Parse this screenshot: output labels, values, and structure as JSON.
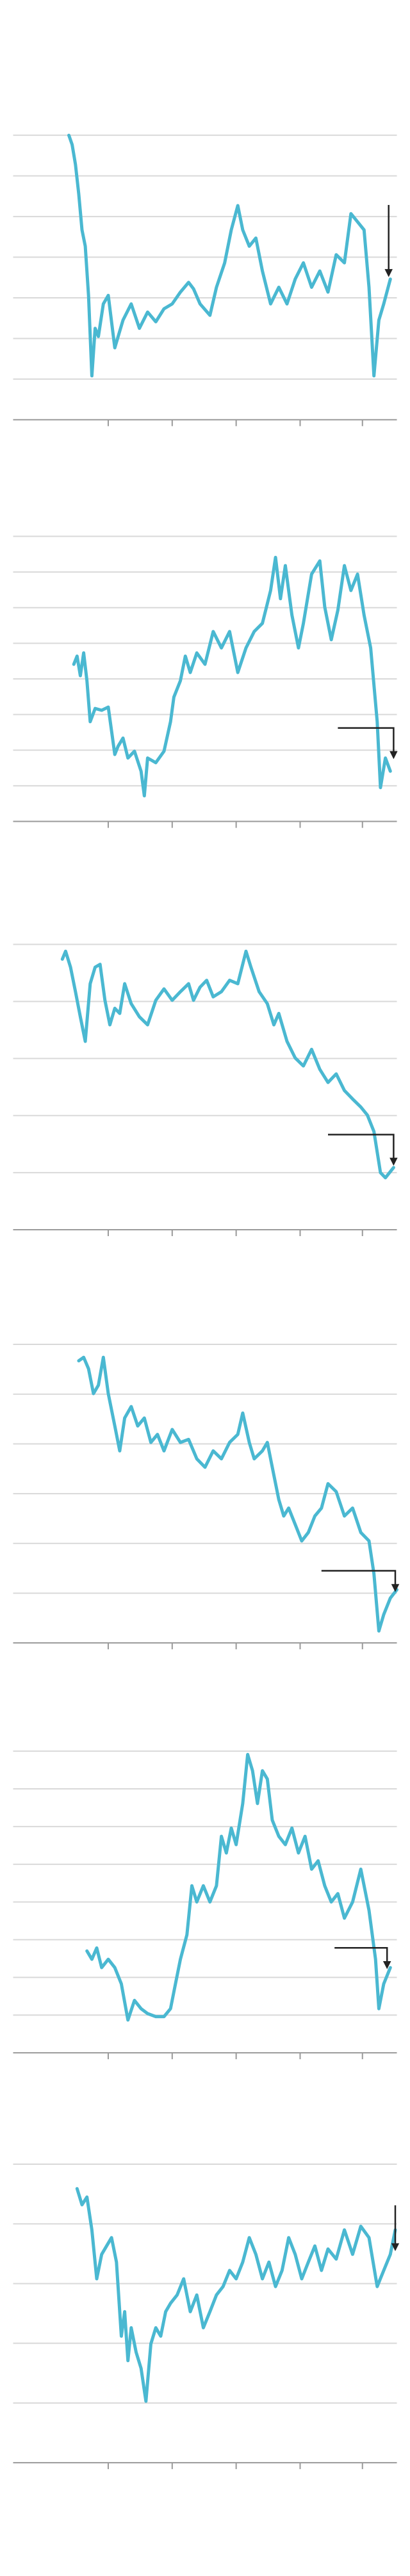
{
  "chart_data": [
    {
      "type": "line",
      "color": "#4ab8d1",
      "grid": true,
      "xlim": [
        8,
        242
      ],
      "xticks": [
        66,
        105,
        144,
        183,
        221
      ],
      "ylim": [
        -10,
        65
      ],
      "yticks": [
        0,
        10,
        20,
        30,
        40,
        50,
        60
      ],
      "x": [
        42,
        44,
        46,
        48,
        50,
        52,
        54,
        56,
        58,
        60,
        63,
        66,
        70,
        75,
        80,
        85,
        90,
        95,
        100,
        105,
        110,
        115,
        118,
        122,
        128,
        132,
        137,
        141,
        145,
        148,
        152,
        156,
        160,
        165,
        170,
        175,
        180,
        185,
        190,
        195,
        200,
        205,
        210,
        214,
        218,
        222,
        225,
        228,
        231,
        234,
        238
      ],
      "values": [
        60,
        57.7,
        52.8,
        45.6,
        36.7,
        32.7,
        20.6,
        0.8,
        12.5,
        10.5,
        18.5,
        20.6,
        7.7,
        14.5,
        18.5,
        12.5,
        16.5,
        14.1,
        17.3,
        18.5,
        21.4,
        23.8,
        22.2,
        18.5,
        15.7,
        22.6,
        28.6,
        36.7,
        42.7,
        36.7,
        32.7,
        34.7,
        26.6,
        18.5,
        22.6,
        18.5,
        24.6,
        28.6,
        22.6,
        26.6,
        21.4,
        30.6,
        28.6,
        40.7,
        38.7,
        36.7,
        22.6,
        0.8,
        14.5,
        18.5,
        24.6
      ]
    },
    {
      "type": "line",
      "color": "#4ab8d1",
      "grid": true,
      "xlim": [
        8,
        242
      ],
      "xticks": [
        66,
        105,
        144,
        183,
        221
      ],
      "ylim": [
        -10,
        73
      ],
      "yticks": [
        0,
        10,
        20,
        30,
        40,
        50,
        60,
        70
      ],
      "x": [
        45,
        47,
        49,
        51,
        53,
        55,
        58,
        62,
        66,
        70,
        72,
        75,
        78,
        82,
        86,
        88,
        90,
        95,
        100,
        104,
        106,
        110,
        113,
        116,
        120,
        125,
        130,
        135,
        140,
        145,
        150,
        155,
        160,
        165,
        168,
        171,
        174,
        178,
        182,
        185,
        190,
        195,
        198,
        202,
        206,
        210,
        214,
        218,
        222,
        226,
        230,
        232,
        235,
        238
      ],
      "values": [
        34.1,
        36.4,
        30.9,
        37.3,
        29.5,
        18.0,
        21.7,
        21.2,
        22.1,
        8.8,
        11.1,
        13.4,
        7.8,
        9.7,
        4.1,
        -2.8,
        7.8,
        6.5,
        9.7,
        18.0,
        24.9,
        29.5,
        36.4,
        31.8,
        37.3,
        34.1,
        43.3,
        38.7,
        43.3,
        31.8,
        38.7,
        43.3,
        45.6,
        54.8,
        64.1,
        52.5,
        61.8,
        47.9,
        38.7,
        45.6,
        59.4,
        63.1,
        50.2,
        41.0,
        49.3,
        61.8,
        54.8,
        59.4,
        47.9,
        38.7,
        18.0,
        -0.5,
        7.8,
        4.1
      ]
    },
    {
      "type": "line",
      "color": "#4ab8d1",
      "grid": true,
      "xlim": [
        8,
        242
      ],
      "xticks": [
        66,
        105,
        144,
        183,
        221
      ],
      "ylim": [
        -10,
        42
      ],
      "yticks": [
        0,
        10,
        20,
        30,
        40
      ],
      "x": [
        38,
        40,
        43,
        46,
        49,
        52,
        55,
        58,
        61,
        64,
        67,
        70,
        73,
        76,
        80,
        85,
        90,
        95,
        100,
        105,
        110,
        115,
        118,
        122,
        126,
        130,
        135,
        140,
        145,
        150,
        153,
        158,
        163,
        167,
        170,
        175,
        180,
        185,
        190,
        195,
        200,
        205,
        210,
        215,
        220,
        224,
        228,
        232,
        235,
        240
      ],
      "values": [
        37.4,
        38.8,
        36.0,
        31.7,
        27.3,
        23.0,
        33.1,
        36.0,
        36.5,
        30.2,
        25.9,
        28.8,
        27.9,
        33.1,
        29.6,
        27.3,
        25.9,
        30.2,
        32.2,
        30.2,
        31.7,
        33.1,
        30.2,
        32.5,
        33.7,
        30.8,
        31.7,
        33.7,
        33.1,
        38.8,
        36.0,
        31.7,
        29.6,
        25.9,
        27.9,
        23.0,
        20.1,
        18.7,
        21.6,
        18.1,
        15.8,
        17.3,
        14.4,
        12.9,
        11.5,
        10.1,
        7.2,
        0,
        -0.9,
        0.9
      ]
    },
    {
      "type": "line",
      "color": "#4ab8d1",
      "grid": true,
      "xlim": [
        8,
        242
      ],
      "xticks": [
        66,
        105,
        144,
        183,
        221
      ],
      "ylim": [
        -10,
        54
      ],
      "yticks": [
        0,
        10,
        20,
        30,
        40,
        50
      ],
      "x": [
        48,
        51,
        54,
        57,
        60,
        63,
        66,
        70,
        73,
        76,
        80,
        84,
        88,
        92,
        96,
        100,
        105,
        110,
        115,
        120,
        125,
        130,
        135,
        140,
        145,
        148,
        152,
        155,
        160,
        163,
        167,
        170,
        173,
        176,
        180,
        184,
        188,
        192,
        196,
        200,
        205,
        210,
        215,
        220,
        225,
        228,
        231,
        234,
        238,
        242
      ],
      "values": [
        46.7,
        47.4,
        45.1,
        40.1,
        41.8,
        47.4,
        40.1,
        33.6,
        28.6,
        35.2,
        37.5,
        33.6,
        35.2,
        30.3,
        31.9,
        28.6,
        32.9,
        30.3,
        30.9,
        27.0,
        25.3,
        28.6,
        27.0,
        30.3,
        31.9,
        36.2,
        30.3,
        27.0,
        28.6,
        30.3,
        23.7,
        18.8,
        15.5,
        17.1,
        13.8,
        10.5,
        12.2,
        15.5,
        17.1,
        22.0,
        20.4,
        15.5,
        17.1,
        12.2,
        10.5,
        3.9,
        -7.6,
        -4.3,
        -1.0,
        0.7
      ]
    },
    {
      "type": "line",
      "color": "#4ab8d1",
      "grid": true,
      "xlim": [
        8,
        242
      ],
      "xticks": [
        66,
        105,
        144,
        183,
        221
      ],
      "ylim": [
        -10,
        74
      ],
      "yticks": [
        0,
        10,
        20,
        30,
        40,
        50,
        60,
        70
      ],
      "x": [
        53,
        56,
        59,
        62,
        66,
        70,
        74,
        78,
        82,
        86,
        90,
        95,
        100,
        104,
        107,
        110,
        114,
        117,
        120,
        124,
        128,
        132,
        135,
        138,
        141,
        144,
        148,
        151,
        154,
        157,
        160,
        163,
        166,
        170,
        174,
        178,
        182,
        186,
        190,
        194,
        198,
        202,
        206,
        210,
        215,
        220,
        225,
        229,
        231,
        234,
        238
      ],
      "values": [
        17.0,
        14.8,
        17.8,
        12.6,
        14.8,
        12.6,
        8.3,
        -1.3,
        3.9,
        1.7,
        0.4,
        -0.4,
        -0.4,
        1.7,
        8.3,
        14.8,
        21.3,
        34.3,
        30.0,
        34.3,
        30.0,
        34.3,
        47.4,
        43.0,
        49.6,
        45.2,
        56.1,
        69.1,
        64.8,
        56.1,
        64.8,
        62.6,
        51.7,
        47.4,
        45.2,
        49.6,
        43.0,
        47.4,
        38.7,
        40.9,
        34.3,
        30.0,
        32.2,
        25.7,
        30.0,
        38.7,
        27.8,
        14.8,
        1.7,
        8.3,
        12.6
      ]
    },
    {
      "type": "line",
      "color": "#4ab8d1",
      "grid": true,
      "xlim": [
        8,
        242
      ],
      "xticks": [
        66,
        105,
        144,
        183,
        221
      ],
      "ylim": [
        -10,
        43
      ],
      "yticks": [
        0,
        10,
        20,
        30,
        40
      ],
      "x": [
        47,
        50,
        53,
        56,
        59,
        62,
        65,
        68,
        71,
        74,
        76,
        78,
        80,
        83,
        86,
        89,
        92,
        95,
        98,
        101,
        104,
        108,
        112,
        116,
        120,
        124,
        128,
        132,
        136,
        140,
        144,
        148,
        152,
        156,
        160,
        164,
        168,
        172,
        176,
        180,
        184,
        188,
        192,
        196,
        200,
        205,
        210,
        215,
        220,
        225,
        230,
        234,
        238,
        241
      ],
      "values": [
        35.9,
        33.2,
        34.5,
        29.0,
        20.8,
        24.9,
        26.3,
        27.7,
        23.6,
        11.2,
        15.3,
        7.1,
        12.6,
        8.5,
        5.8,
        0.3,
        9.9,
        12.6,
        11.2,
        15.3,
        16.7,
        18.1,
        20.8,
        15.3,
        18.1,
        12.6,
        15.3,
        18.1,
        19.5,
        22.2,
        20.8,
        23.6,
        27.7,
        24.9,
        20.8,
        23.6,
        19.5,
        22.2,
        27.7,
        24.9,
        20.8,
        23.6,
        26.3,
        22.2,
        25.8,
        24.1,
        29.0,
        24.9,
        29.6,
        27.7,
        19.5,
        22.2,
        24.9,
        29.0
      ]
    }
  ]
}
